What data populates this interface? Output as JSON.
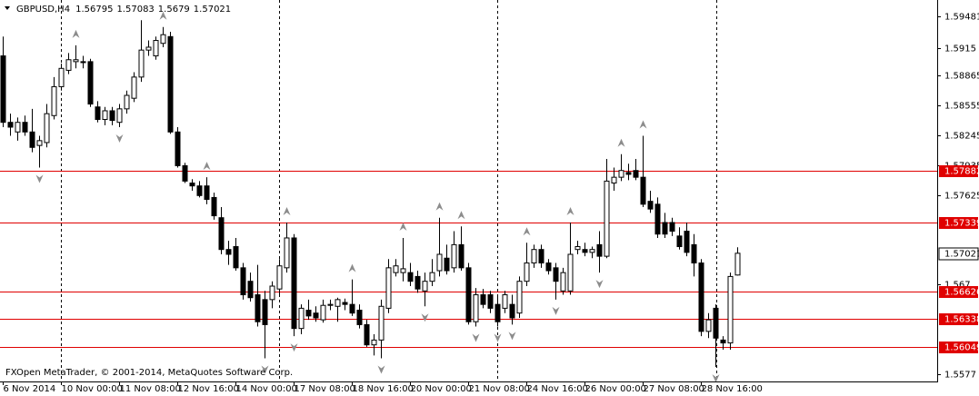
{
  "chart_data": {
    "type": "candlestick",
    "title": "GBPUSD,H4",
    "footer": "FXOpen MetaTrader, © 2001-2014, MetaQuotes Software Corp.",
    "categories": [
      "6 Nov 2014",
      null,
      null,
      null,
      null,
      null,
      null,
      null,
      "10 Nov 00:00",
      null,
      null,
      null,
      null,
      null,
      null,
      null,
      "11 Nov 08:00",
      null,
      null,
      null,
      null,
      null,
      null,
      null,
      "12 Nov 16:00",
      null,
      null,
      null,
      null,
      null,
      null,
      null,
      "14 Nov 00:00",
      null,
      null,
      null,
      null,
      null,
      null,
      null,
      "17 Nov 08:00",
      null,
      null,
      null,
      null,
      null,
      null,
      null,
      "18 Nov 16:00",
      null,
      null,
      null,
      null,
      null,
      null,
      null,
      "20 Nov 00:00",
      null,
      null,
      null,
      null,
      null,
      null,
      null,
      "21 Nov 08:00",
      null,
      null,
      null,
      null,
      null,
      null,
      null,
      "24 Nov 16:00",
      null,
      null,
      null,
      null,
      null,
      null,
      null,
      "26 Nov 00:00",
      null,
      null,
      null,
      null,
      null,
      null,
      null,
      "27 Nov 08:00",
      null,
      null,
      null,
      null,
      null,
      null,
      null,
      "28 Nov 16:00",
      null,
      null,
      null,
      null,
      null
    ],
    "open": [
      1.5907,
      1.5838,
      1.5828,
      1.5838,
      1.5828,
      1.5814,
      1.5817,
      1.5845,
      1.5875,
      1.5892,
      1.5901,
      1.5901,
      1.5901,
      1.5854,
      1.5841,
      1.585,
      1.5838,
      1.5852,
      1.5863,
      1.5885,
      1.5913,
      1.5907,
      1.592,
      1.5927,
      1.5828,
      1.5793,
      1.5775,
      1.5772,
      1.5772,
      1.576,
      1.5739,
      1.5706,
      1.5709,
      1.5687,
      1.5673,
      1.5659,
      1.5654,
      1.5654,
      1.5665,
      1.5687,
      1.5718,
      1.5624,
      1.5643,
      1.564,
      1.5633,
      1.5648,
      1.5647,
      1.5651,
      1.5649,
      1.5643,
      1.5628,
      1.5607,
      1.5612,
      1.5645,
      1.5682,
      1.5682,
      1.5682,
      1.5678,
      1.5663,
      1.5673,
      1.5684,
      1.5697,
      1.5687,
      1.5711,
      1.5687,
      1.5631,
      1.5659,
      1.5659,
      1.5649,
      1.5645,
      1.5649,
      1.564,
      1.5673,
      1.5692,
      1.5706,
      1.5692,
      1.5687,
      1.5663,
      1.5663,
      1.5706,
      1.5706,
      1.5703,
      1.5711,
      1.5699,
      1.5775,
      1.5781,
      1.5786,
      1.5788,
      1.5781,
      1.5756,
      1.5753,
      1.5734,
      1.5734,
      1.572,
      1.5725,
      1.5711,
      1.5692,
      1.5621,
      1.5645,
      1.5612,
      1.5609,
      1.56795
    ],
    "high": [
      1.5927,
      1.5847,
      1.5843,
      1.5845,
      1.5852,
      1.5824,
      1.5857,
      1.5885,
      1.5899,
      1.591,
      1.5918,
      1.5907,
      1.5904,
      1.586,
      1.5854,
      1.5854,
      1.5857,
      1.5871,
      1.589,
      1.5944,
      1.5923,
      1.5927,
      1.5937,
      1.5932,
      1.5833,
      1.5796,
      1.5779,
      1.5777,
      1.5781,
      1.5765,
      1.575,
      1.5715,
      1.5718,
      1.5692,
      1.5682,
      1.569,
      1.5663,
      1.5673,
      1.5696,
      1.5734,
      1.5722,
      1.5649,
      1.5654,
      1.5647,
      1.5654,
      1.5654,
      1.5656,
      1.5655,
      1.5675,
      1.5649,
      1.5633,
      1.5618,
      1.5654,
      1.5696,
      1.5696,
      1.5718,
      1.5692,
      1.5684,
      1.5682,
      1.5696,
      1.5739,
      1.5711,
      1.5725,
      1.573,
      1.5692,
      1.5666,
      1.5665,
      1.5663,
      1.5659,
      1.5663,
      1.5659,
      1.5678,
      1.5713,
      1.5711,
      1.5711,
      1.5696,
      1.5692,
      1.5687,
      1.5734,
      1.5715,
      1.5713,
      1.5709,
      1.5725,
      1.58,
      1.5791,
      1.5805,
      1.5795,
      1.58,
      1.5824,
      1.5767,
      1.576,
      1.5744,
      1.5739,
      1.5729,
      1.5734,
      1.5722,
      1.5696,
      1.564,
      1.5649,
      1.5616,
      1.5682,
      1.57083
    ],
    "low": [
      1.5833,
      1.5824,
      1.5819,
      1.5824,
      1.5807,
      1.5791,
      1.5812,
      1.5841,
      1.5871,
      1.5888,
      1.5894,
      1.5894,
      1.5854,
      1.5838,
      1.5835,
      1.5835,
      1.5833,
      1.5847,
      1.5859,
      1.588,
      1.5907,
      1.5903,
      1.5916,
      1.5826,
      1.5791,
      1.5775,
      1.5767,
      1.576,
      1.5753,
      1.5737,
      1.5701,
      1.569,
      1.5684,
      1.5654,
      1.5652,
      1.5626,
      1.5593,
      1.5645,
      1.5659,
      1.5682,
      1.5616,
      1.5618,
      1.5633,
      1.5631,
      1.563,
      1.5643,
      1.5631,
      1.5643,
      1.5637,
      1.5624,
      1.5605,
      1.5596,
      1.5593,
      1.564,
      1.5678,
      1.5673,
      1.5668,
      1.5661,
      1.5647,
      1.5668,
      1.5678,
      1.568,
      1.5682,
      1.5684,
      1.5628,
      1.5626,
      1.5645,
      1.564,
      1.5626,
      1.564,
      1.5628,
      1.5635,
      1.5668,
      1.5687,
      1.5687,
      1.568,
      1.5654,
      1.5659,
      1.5659,
      1.5701,
      1.5699,
      1.5697,
      1.5682,
      1.5697,
      1.5767,
      1.5777,
      1.5778,
      1.5778,
      1.575,
      1.5744,
      1.5718,
      1.5718,
      1.572,
      1.5706,
      1.5699,
      1.5678,
      1.5616,
      1.5614,
      1.5584,
      1.5602,
      1.5602,
      1.5679
    ],
    "close": [
      1.5838,
      1.5833,
      1.5838,
      1.5828,
      1.5812,
      1.5819,
      1.5847,
      1.5875,
      1.5894,
      1.5903,
      1.5903,
      1.59,
      1.5857,
      1.5841,
      1.585,
      1.584,
      1.5852,
      1.5866,
      1.5885,
      1.5913,
      1.5916,
      1.5923,
      1.5929,
      1.5828,
      1.5793,
      1.5777,
      1.5772,
      1.5762,
      1.5758,
      1.5741,
      1.5706,
      1.5701,
      1.5687,
      1.5659,
      1.5656,
      1.5631,
      1.5628,
      1.5668,
      1.5689,
      1.5718,
      1.5624,
      1.5645,
      1.5637,
      1.5635,
      1.5648,
      1.5649,
      1.5654,
      1.5649,
      1.564,
      1.5628,
      1.5607,
      1.5612,
      1.5647,
      1.5687,
      1.5689,
      1.5686,
      1.5673,
      1.5665,
      1.5673,
      1.5682,
      1.5701,
      1.5684,
      1.5711,
      1.5687,
      1.5631,
      1.5659,
      1.5649,
      1.5645,
      1.5631,
      1.5659,
      1.5635,
      1.5673,
      1.5692,
      1.5706,
      1.5692,
      1.5684,
      1.5673,
      1.5682,
      1.5701,
      1.5709,
      1.5703,
      1.5706,
      1.5699,
      1.5777,
      1.5781,
      1.5788,
      1.5784,
      1.5781,
      1.5753,
      1.5748,
      1.5722,
      1.5722,
      1.5725,
      1.5709,
      1.5703,
      1.5692,
      1.5621,
      1.5633,
      1.5614,
      1.5609,
      1.5678,
      1.57021
    ],
    "fractals_up": [
      null,
      null,
      null,
      null,
      null,
      null,
      null,
      null,
      null,
      null,
      1.5918,
      null,
      null,
      null,
      null,
      null,
      null,
      null,
      null,
      null,
      null,
      null,
      1.5937,
      null,
      null,
      null,
      null,
      null,
      1.5781,
      null,
      null,
      null,
      null,
      null,
      null,
      null,
      null,
      null,
      null,
      1.5734,
      null,
      null,
      null,
      null,
      null,
      null,
      null,
      null,
      1.5675,
      null,
      null,
      null,
      null,
      null,
      null,
      1.5718,
      null,
      null,
      null,
      null,
      1.5739,
      null,
      null,
      1.573,
      null,
      null,
      null,
      null,
      null,
      null,
      null,
      null,
      1.5713,
      null,
      null,
      null,
      null,
      null,
      1.5734,
      null,
      null,
      null,
      null,
      null,
      null,
      1.5805,
      null,
      null,
      1.5824,
      null,
      null,
      null,
      null,
      null,
      null,
      null,
      null,
      null,
      null,
      null,
      null,
      null
    ],
    "fractals_down": [
      null,
      null,
      null,
      null,
      null,
      1.5791,
      null,
      null,
      null,
      null,
      null,
      null,
      null,
      null,
      null,
      null,
      1.5833,
      null,
      null,
      null,
      null,
      null,
      null,
      null,
      null,
      null,
      null,
      null,
      null,
      null,
      null,
      null,
      null,
      null,
      null,
      null,
      1.5593,
      null,
      null,
      null,
      1.5616,
      null,
      null,
      null,
      null,
      null,
      null,
      null,
      null,
      null,
      null,
      null,
      1.5593,
      null,
      null,
      null,
      null,
      null,
      1.5647,
      null,
      null,
      null,
      null,
      null,
      null,
      1.5626,
      null,
      null,
      1.5626,
      null,
      1.5628,
      null,
      null,
      null,
      null,
      null,
      1.5654,
      null,
      null,
      null,
      null,
      null,
      1.5682,
      null,
      null,
      null,
      null,
      null,
      null,
      null,
      null,
      null,
      null,
      null,
      null,
      null,
      null,
      null,
      1.5584,
      null,
      null,
      null
    ],
    "levels": [
      {
        "value": 1.57882,
        "color": "#e00000"
      },
      {
        "value": 1.57339,
        "color": "#e00000"
      },
      {
        "value": 1.56626,
        "color": "#e00000"
      },
      {
        "value": 1.56338,
        "color": "#e00000"
      },
      {
        "value": 1.56049,
        "color": "#e00000"
      }
    ],
    "colors": {
      "bull": "#ffffff",
      "bear": "#000000",
      "outline": "#000000",
      "fractal": "#8c8c8c"
    },
    "ylim": [
      1.5569,
      1.5965
    ],
    "yticks": [
      1.59481,
      1.5915,
      1.58865,
      1.58555,
      1.58245,
      1.57935,
      1.57625,
      1.567,
      1.5577
    ]
  }
}
